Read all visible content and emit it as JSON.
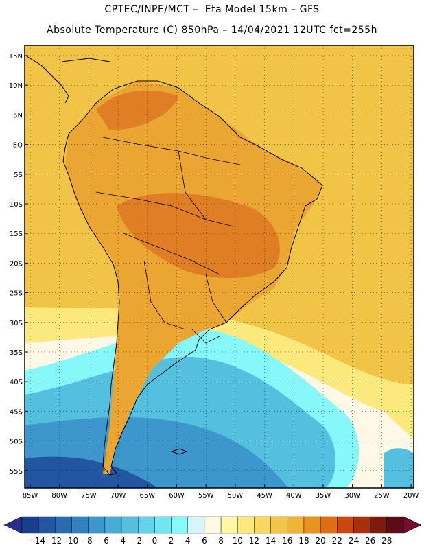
{
  "header": {
    "line1": "CPTEC/INPE/MCT –  Eta Model 15km – GFS",
    "line2": "Absolute Temperature (C) 850hPa – 14/04/2021 12UTC fct=255h"
  },
  "axes": {
    "lat_labels": [
      "15N",
      "10N",
      "5N",
      "EQ",
      "5S",
      "10S",
      "15S",
      "20S",
      "25S",
      "30S",
      "35S",
      "40S",
      "45S",
      "50S",
      "55S"
    ],
    "lon_labels": [
      "85W",
      "80W",
      "75W",
      "70W",
      "65W",
      "60W",
      "55W",
      "50W",
      "45W",
      "40W",
      "35W",
      "30W",
      "25W",
      "20W"
    ]
  },
  "colorbar": {
    "labels": [
      "-14",
      "-12",
      "-10",
      "-8",
      "-6",
      "-4",
      "-2",
      "0",
      "2",
      "4",
      "6",
      "8",
      "10",
      "12",
      "14",
      "16",
      "18",
      "20",
      "22",
      "24",
      "26",
      "28"
    ],
    "colors": [
      "#1a3f8c",
      "#2356a0",
      "#2a6aaf",
      "#3280bf",
      "#3d96cc",
      "#48aad6",
      "#55bfe0",
      "#62d3ea",
      "#6fe8f2",
      "#86f8fa",
      "#d8f6fa",
      "#fff8e6",
      "#fff7a6",
      "#fbe97e",
      "#f8d95e",
      "#f3c64a",
      "#eeb433",
      "#e9921e",
      "#df6d14",
      "#c94810",
      "#a8300c",
      "#7a1d10",
      "#5a0f18"
    ],
    "low_arrow_color": "#2a2d8a",
    "high_arrow_color": "#7a0a30"
  },
  "map": {
    "ocean_color": "#f1c448",
    "land_color": "#eba532",
    "hot_color": "#df7e24",
    "coast_color": "#000000"
  }
}
